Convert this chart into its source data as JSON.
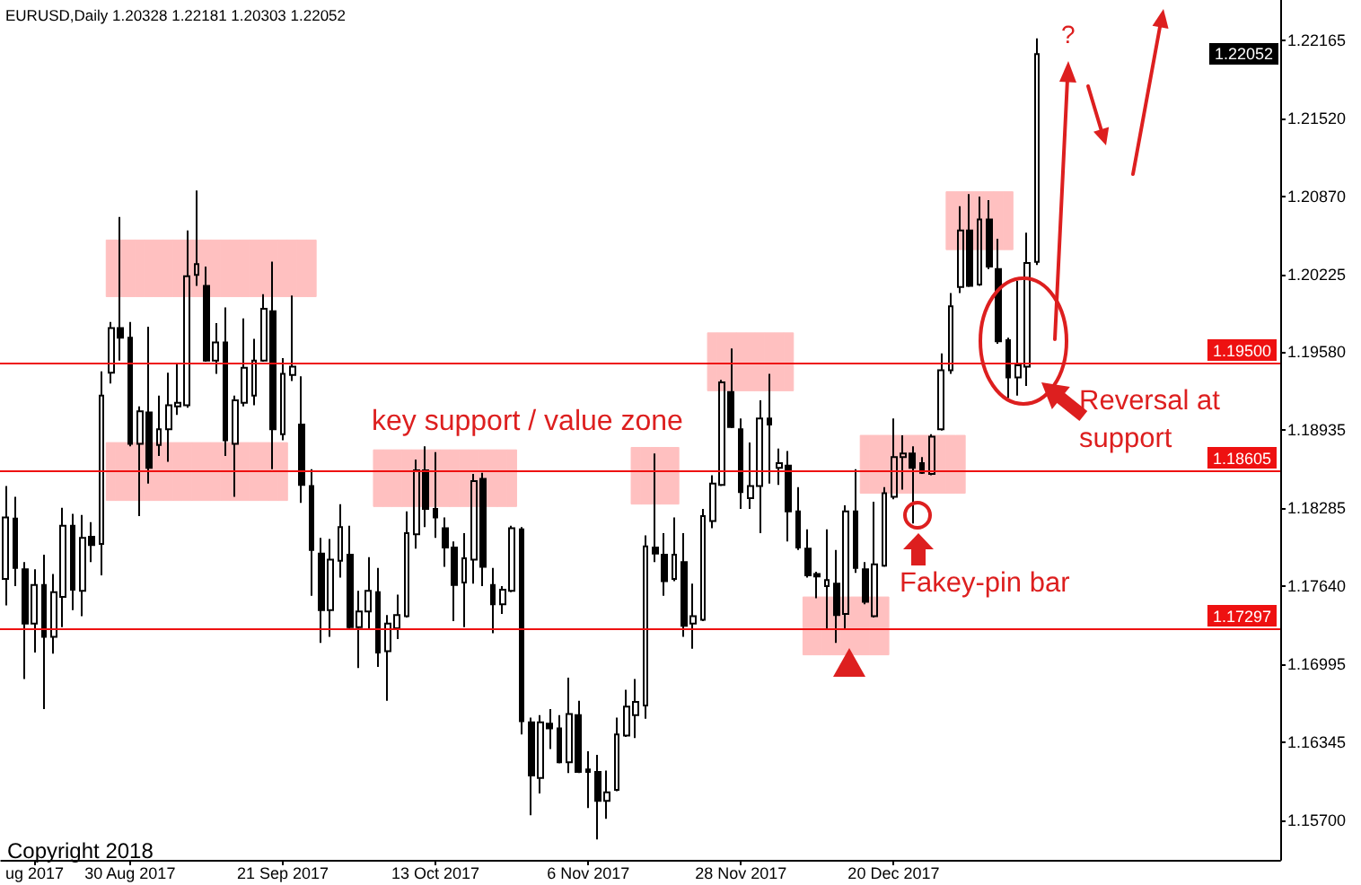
{
  "chart_data": {
    "type": "candlestick",
    "title": "EURUSD,Daily 1.20328 1.22181 1.20303 1.22052",
    "color": "#000000",
    "categories": [
      null,
      null,
      null,
      "ug 2017",
      null,
      null,
      null,
      null,
      null,
      null,
      null,
      null,
      null,
      "30 Aug 2017",
      null,
      null,
      null,
      null,
      null,
      null,
      null,
      null,
      null,
      null,
      null,
      null,
      null,
      null,
      null,
      "21 Sep 2017",
      null,
      null,
      null,
      null,
      null,
      null,
      null,
      null,
      null,
      null,
      null,
      null,
      null,
      null,
      null,
      "13 Oct 2017",
      null,
      null,
      null,
      null,
      null,
      null,
      null,
      null,
      null,
      null,
      null,
      null,
      null,
      null,
      null,
      "6 Nov 2017",
      null,
      null,
      null,
      null,
      null,
      null,
      null,
      null,
      null,
      null,
      null,
      null,
      null,
      null,
      null,
      "28 Nov 2017",
      null,
      null,
      null,
      null,
      null,
      null,
      null,
      null,
      null,
      null,
      null,
      null,
      null,
      null,
      null,
      "20 Dec 2017",
      null,
      null,
      null,
      null,
      null,
      null,
      null,
      null,
      null,
      null,
      null,
      null,
      null,
      null,
      null,
      null,
      null,
      null,
      null,
      null,
      null,
      null,
      null,
      null,
      null,
      null,
      null,
      null,
      null,
      null,
      null,
      null,
      null,
      null,
      null,
      null,
      null,
      null,
      null,
      null
    ],
    "ohlc": [
      [
        1.177,
        1.1847,
        1.1748,
        1.1821
      ],
      [
        1.182,
        1.1838,
        1.1764,
        1.1779
      ],
      [
        1.1778,
        1.1784,
        1.1687,
        1.1733
      ],
      [
        1.1733,
        1.1778,
        1.1709,
        1.1765
      ],
      [
        1.1765,
        1.179,
        1.1662,
        1.1722
      ],
      [
        1.1722,
        1.1774,
        1.1708,
        1.1759
      ],
      [
        1.1755,
        1.1829,
        1.173,
        1.1814
      ],
      [
        1.1814,
        1.1824,
        1.1744,
        1.1761
      ],
      [
        1.176,
        1.1823,
        1.1739,
        1.1804
      ],
      [
        1.1805,
        1.1817,
        1.1784,
        1.1798
      ],
      [
        1.1799,
        1.1942,
        1.1773,
        1.1922
      ],
      [
        1.1941,
        1.1983,
        1.1932,
        1.1978
      ],
      [
        1.1978,
        1.207,
        1.1951,
        1.197
      ],
      [
        1.197,
        1.1983,
        1.188,
        1.1882
      ],
      [
        1.1882,
        1.1913,
        1.1822,
        1.1909
      ],
      [
        1.1908,
        1.1979,
        1.1849,
        1.1862
      ],
      [
        1.1881,
        1.1922,
        1.1872,
        1.1894
      ],
      [
        1.1894,
        1.1941,
        1.1867,
        1.1914
      ],
      [
        1.1913,
        1.1948,
        1.1906,
        1.1916
      ],
      [
        1.1914,
        1.2059,
        1.1912,
        1.2021
      ],
      [
        1.2022,
        1.2092,
        1.2013,
        1.2031
      ],
      [
        1.2013,
        1.2029,
        1.195,
        1.1951
      ],
      [
        1.1951,
        1.1982,
        1.194,
        1.1966
      ],
      [
        1.1966,
        1.1995,
        1.1872,
        1.1885
      ],
      [
        1.1882,
        1.1922,
        1.1838,
        1.1918
      ],
      [
        1.1916,
        1.1986,
        1.1913,
        1.1945
      ],
      [
        1.1922,
        1.1969,
        1.1914,
        1.1951
      ],
      [
        1.1951,
        1.2006,
        1.195,
        1.1994
      ],
      [
        1.1992,
        1.2033,
        1.1861,
        1.1894
      ],
      [
        1.189,
        1.1953,
        1.1885,
        1.194
      ],
      [
        1.1939,
        1.2005,
        1.1934,
        1.1946
      ],
      [
        1.1898,
        1.1938,
        1.1833,
        1.1848
      ],
      [
        1.1847,
        1.1861,
        1.1756,
        1.1794
      ],
      [
        1.1791,
        1.1804,
        1.1717,
        1.1744
      ],
      [
        1.1744,
        1.1803,
        1.1722,
        1.1786
      ],
      [
        1.1785,
        1.1832,
        1.1771,
        1.1813
      ],
      [
        1.179,
        1.1814,
        1.1729,
        1.173
      ],
      [
        1.173,
        1.176,
        1.1696,
        1.1743
      ],
      [
        1.1743,
        1.1788,
        1.1729,
        1.176
      ],
      [
        1.1759,
        1.1779,
        1.1697,
        1.1709
      ],
      [
        1.171,
        1.174,
        1.1669,
        1.1733
      ],
      [
        1.1729,
        1.1757,
        1.172,
        1.174
      ],
      [
        1.1739,
        1.1826,
        1.1738,
        1.1808
      ],
      [
        1.1807,
        1.1869,
        1.1795,
        1.186
      ],
      [
        1.186,
        1.188,
        1.1813,
        1.1828
      ],
      [
        1.1828,
        1.1875,
        1.1804,
        1.1821
      ],
      [
        1.1812,
        1.1821,
        1.178,
        1.1796
      ],
      [
        1.1796,
        1.1801,
        1.1735,
        1.1765
      ],
      [
        1.1767,
        1.1808,
        1.173,
        1.1787
      ],
      [
        1.1786,
        1.1857,
        1.1766,
        1.1851
      ],
      [
        1.1853,
        1.1858,
        1.1764,
        1.178
      ],
      [
        1.1765,
        1.1779,
        1.1725,
        1.1749
      ],
      [
        1.1749,
        1.1764,
        1.1741,
        1.1761
      ],
      [
        1.176,
        1.1814,
        1.1759,
        1.1812
      ],
      [
        1.1811,
        1.1813,
        1.1641,
        1.1652
      ],
      [
        1.1651,
        1.1655,
        1.1574,
        1.1607
      ],
      [
        1.1605,
        1.1657,
        1.1592,
        1.1651
      ],
      [
        1.165,
        1.1662,
        1.1629,
        1.1646
      ],
      [
        1.1646,
        1.1657,
        1.1617,
        1.1618
      ],
      [
        1.1618,
        1.1688,
        1.1609,
        1.1658
      ],
      [
        1.1657,
        1.1669,
        1.1609,
        1.161
      ],
      [
        1.1612,
        1.1627,
        1.158,
        1.161
      ],
      [
        1.161,
        1.1624,
        1.1554,
        1.1586
      ],
      [
        1.1586,
        1.1611,
        1.1571,
        1.1593
      ],
      [
        1.1595,
        1.1655,
        1.1594,
        1.1641
      ],
      [
        1.164,
        1.1678,
        1.1639,
        1.1664
      ],
      [
        1.1657,
        1.1687,
        1.1638,
        1.1668
      ],
      [
        1.1665,
        1.1806,
        1.1654,
        1.1797
      ],
      [
        1.1796,
        1.1874,
        1.1784,
        1.1791
      ],
      [
        1.179,
        1.1808,
        1.1756,
        1.1768
      ],
      [
        1.177,
        1.1821,
        1.1768,
        1.179
      ],
      [
        1.1784,
        1.1808,
        1.1722,
        1.1731
      ],
      [
        1.1733,
        1.1766,
        1.1712,
        1.1739
      ],
      [
        1.1736,
        1.1828,
        1.1735,
        1.1822
      ],
      [
        1.1818,
        1.1856,
        1.1812,
        1.1849
      ],
      [
        1.1848,
        1.1935,
        1.1847,
        1.1933
      ],
      [
        1.1925,
        1.1961,
        1.1895,
        1.1896
      ],
      [
        1.1894,
        1.1903,
        1.1828,
        1.1842
      ],
      [
        1.1837,
        1.1883,
        1.1828,
        1.1847
      ],
      [
        1.1847,
        1.1918,
        1.1808,
        1.1903
      ],
      [
        1.1903,
        1.194,
        1.1849,
        1.1898
      ],
      [
        1.1862,
        1.1878,
        1.1848,
        1.1866
      ],
      [
        1.1864,
        1.1876,
        1.1801,
        1.1826
      ],
      [
        1.1826,
        1.1846,
        1.1794,
        1.1796
      ],
      [
        1.1795,
        1.1811,
        1.1771,
        1.1773
      ],
      [
        1.1774,
        1.1776,
        1.1754,
        1.1772
      ],
      [
        1.1764,
        1.1811,
        1.1729,
        1.1769
      ],
      [
        1.1766,
        1.1794,
        1.1717,
        1.174
      ],
      [
        1.1741,
        1.1831,
        1.1729,
        1.1826
      ],
      [
        1.1826,
        1.1861,
        1.1775,
        1.1779
      ],
      [
        1.1778,
        1.1784,
        1.1749,
        1.1751
      ],
      [
        1.1739,
        1.1834,
        1.1738,
        1.1782
      ],
      [
        1.1781,
        1.1846,
        1.178,
        1.1841
      ],
      [
        1.1838,
        1.1903,
        1.1836,
        1.1871
      ],
      [
        1.1871,
        1.1889,
        1.1844,
        1.1874
      ],
      [
        1.1874,
        1.188,
        1.1816,
        1.1862
      ],
      [
        1.1866,
        1.1871,
        1.1857,
        1.1858
      ],
      [
        1.1857,
        1.189,
        1.1856,
        1.1888
      ],
      [
        1.1894,
        1.1957,
        1.1893,
        1.1943
      ],
      [
        1.1943,
        1.2007,
        1.194,
        1.1996
      ],
      [
        1.2012,
        1.2079,
        1.2007,
        1.2059
      ],
      [
        1.2059,
        1.2089,
        1.2012,
        1.2013
      ],
      [
        1.2014,
        1.2087,
        1.2013,
        1.2068
      ],
      [
        1.2068,
        1.2084,
        1.2027,
        1.2029
      ],
      [
        1.2027,
        1.2052,
        1.1965,
        1.1967
      ],
      [
        1.1968,
        1.197,
        1.192,
        1.1937
      ],
      [
        1.1937,
        1.2017,
        1.1922,
        1.1947
      ],
      [
        1.1946,
        1.2057,
        1.193,
        1.2032
      ],
      [
        1.20328,
        1.22181,
        1.20303,
        1.22052
      ],
      null,
      null,
      null,
      null,
      null,
      null,
      null,
      null,
      null,
      null,
      null,
      null,
      null,
      null,
      null,
      null,
      null,
      null,
      null,
      null,
      null,
      null,
      null,
      null,
      null
    ],
    "series": [
      {
        "type": "bar",
        "color": "#ffc0c0",
        "base": [
          null,
          null,
          null,
          null,
          null,
          null,
          null,
          null,
          null,
          null,
          null,
          1.2004,
          1.2004,
          1.2004,
          1.2004,
          1.2004,
          1.2004,
          1.2004,
          1.2004,
          1.2004,
          1.2004,
          1.2004,
          1.2004,
          1.2004,
          1.2004,
          1.2004,
          1.2004,
          1.2004,
          1.2004,
          1.2004,
          1.2004,
          1.2004,
          1.2004,
          null,
          null,
          null,
          null,
          null,
          null,
          1.183,
          1.183,
          1.183,
          1.183,
          1.183,
          1.183,
          1.183,
          1.183,
          1.183,
          1.183,
          1.183,
          1.183,
          1.183,
          1.183,
          1.183,
          null,
          null,
          null,
          null,
          null,
          null,
          null,
          null,
          null,
          null,
          null,
          null,
          null,
          null,
          null,
          null,
          null,
          null,
          null,
          null,
          1.1926,
          1.1926,
          1.1926,
          1.1926,
          1.1926,
          1.1926,
          1.1926,
          1.1926,
          1.1926,
          null,
          null,
          null,
          null,
          null,
          null,
          null,
          1.1841,
          1.1841,
          1.1841,
          1.1841,
          1.1841,
          1.1841,
          1.1841,
          1.1841,
          1.1841,
          1.1841,
          1.1841,
          null,
          null,
          null,
          null,
          null,
          null,
          null,
          null,
          null,
          null,
          null,
          null,
          null,
          null,
          null,
          null,
          null,
          null,
          null,
          null,
          null,
          null,
          null,
          null,
          null,
          null,
          null,
          null,
          null,
          null,
          null,
          null,
          null
        ],
        "values": [
          null,
          null,
          null,
          null,
          null,
          null,
          null,
          null,
          null,
          null,
          null,
          0.0047,
          0.0047,
          0.0047,
          0.0047,
          0.0047,
          0.0047,
          0.0047,
          0.0047,
          0.0047,
          0.0047,
          0.0047,
          0.0047,
          0.0047,
          0.0047,
          0.0047,
          0.0047,
          0.0047,
          0.0047,
          0.0047,
          0.0047,
          0.0047,
          0.0047,
          null,
          null,
          null,
          null,
          null,
          null,
          0.0047,
          0.0047,
          0.0047,
          0.0047,
          0.0047,
          0.0047,
          0.0047,
          0.0047,
          0.0047,
          0.0047,
          0.0047,
          0.0047,
          0.0047,
          0.0047,
          0.0047,
          null,
          null,
          null,
          null,
          null,
          null,
          null,
          null,
          null,
          null,
          null,
          null,
          null,
          null,
          null,
          null,
          null,
          null,
          null,
          null,
          0.0048,
          0.0048,
          0.0048,
          0.0048,
          0.0048,
          0.0048,
          0.0048,
          0.0048,
          0.0048,
          null,
          null,
          null,
          null,
          null,
          null,
          null,
          0.0048,
          0.0048,
          0.0048,
          0.0048,
          0.0048,
          0.0048,
          0.0048,
          0.0048,
          0.0048,
          0.0048,
          0.0048,
          null,
          null,
          null,
          null,
          null,
          null,
          null,
          null,
          null,
          null,
          null,
          null,
          null,
          null,
          null,
          null,
          null,
          null,
          null,
          null,
          null,
          null,
          null,
          null,
          null,
          null,
          null,
          null,
          null,
          null,
          null,
          null,
          null
        ]
      },
      {
        "type": "bar",
        "color": "#ffc0c0",
        "base": [
          null,
          null,
          null,
          null,
          null,
          null,
          null,
          null,
          null,
          null,
          null,
          1.1835,
          1.1835,
          1.1835,
          1.1835,
          1.1835,
          1.1835,
          1.1835,
          1.1835,
          1.1835,
          1.1835,
          1.1835,
          1.1835,
          1.1835,
          1.1835,
          1.1835,
          1.1835,
          1.1835,
          1.1835,
          1.1835,
          null,
          null,
          null,
          null,
          null,
          null,
          null,
          null,
          null,
          null,
          null,
          null,
          null,
          null,
          null,
          null,
          null,
          null,
          null,
          null,
          null,
          null,
          null,
          null,
          null,
          null,
          null,
          null,
          null,
          null,
          null,
          null,
          null,
          null,
          null,
          null,
          1.1832,
          1.1832,
          1.1832,
          1.1832,
          1.1832,
          null,
          null,
          null,
          null,
          null,
          null,
          null,
          null,
          null,
          null,
          null,
          null,
          null,
          1.1707,
          1.1707,
          1.1707,
          1.1707,
          1.1707,
          1.1707,
          1.1707,
          1.1707,
          1.1707,
          null,
          null,
          null,
          null,
          null,
          null,
          1.2043,
          1.2043,
          1.2043,
          1.2043,
          1.2043,
          1.2043,
          1.2043,
          null,
          null,
          null,
          null,
          null,
          null,
          null,
          null,
          null,
          null,
          null,
          null,
          null,
          null,
          null,
          null,
          null,
          null,
          null,
          null,
          null,
          null,
          null,
          null,
          null,
          null,
          null,
          null
        ],
        "values": [
          null,
          null,
          null,
          null,
          null,
          null,
          null,
          null,
          null,
          null,
          null,
          0.0048,
          0.0048,
          0.0048,
          0.0048,
          0.0048,
          0.0048,
          0.0048,
          0.0048,
          0.0048,
          0.0048,
          0.0048,
          0.0048,
          0.0048,
          0.0048,
          0.0048,
          0.0048,
          0.0048,
          0.0048,
          0.0048,
          null,
          null,
          null,
          null,
          null,
          null,
          null,
          null,
          null,
          null,
          null,
          null,
          null,
          null,
          null,
          null,
          null,
          null,
          null,
          null,
          null,
          null,
          null,
          null,
          null,
          null,
          null,
          null,
          null,
          null,
          null,
          null,
          null,
          null,
          null,
          null,
          0.0047,
          0.0047,
          0.0047,
          0.0047,
          0.0047,
          null,
          null,
          null,
          null,
          null,
          null,
          null,
          null,
          null,
          null,
          null,
          null,
          null,
          0.0048,
          0.0048,
          0.0048,
          0.0048,
          0.0048,
          0.0048,
          0.0048,
          0.0048,
          0.0048,
          null,
          null,
          null,
          null,
          null,
          null,
          0.0048,
          0.0048,
          0.0048,
          0.0048,
          0.0048,
          0.0048,
          0.0048,
          null,
          null,
          null,
          null,
          null,
          null,
          null,
          null,
          null,
          null,
          null,
          null,
          null,
          null,
          null,
          null,
          null,
          null,
          null,
          null,
          null,
          null,
          null,
          null,
          null,
          null,
          null,
          null
        ]
      }
    ],
    "ylim": [
      1.1537,
      1.225
    ],
    "yticks": [
      {
        "value": 1.157,
        "label": "1.15700"
      },
      1.16345,
      1.16995,
      {
        "value": 1.1764,
        "label": "1.17640"
      },
      1.18285,
      1.18935,
      {
        "value": 1.1958,
        "label": "1.19580"
      },
      1.20225,
      {
        "value": 1.2087,
        "label": "1.20870"
      },
      {
        "value": 1.2152,
        "label": "1.21520"
      },
      1.22165
    ],
    "ref_lines": [
      {
        "axis": "y",
        "value": 1.195,
        "label": "1.19500",
        "color": "#ee1111"
      },
      {
        "axis": "y",
        "value": 1.18605,
        "label": "1.18605",
        "color": "#ee1111"
      },
      {
        "axis": "y",
        "value": 1.17297,
        "label": "1.17297",
        "color": "#ee1111"
      }
    ],
    "annotations": [
      "key support / value zone",
      "Fakey-pin bar",
      "Reversal at support",
      "?",
      "Copyright 2018",
      "1.22052"
    ]
  }
}
